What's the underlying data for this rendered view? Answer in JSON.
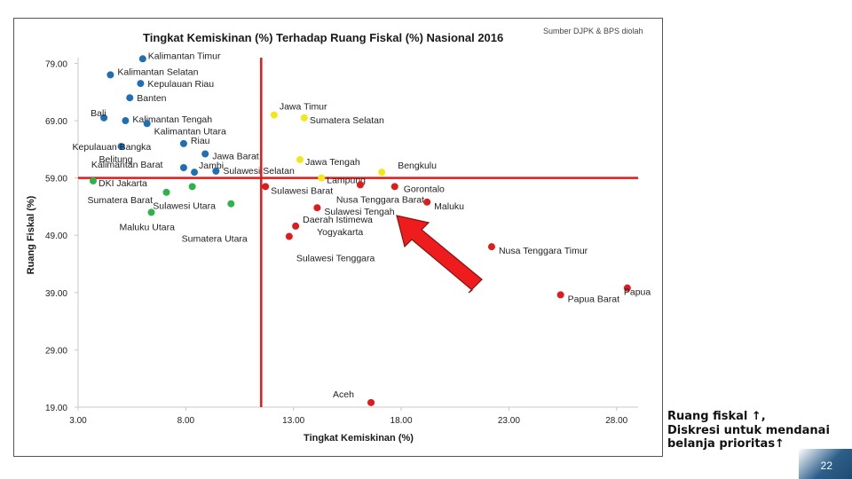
{
  "slide": {
    "source_note": "Sumber DJPK & BPS diolah",
    "side_text_lines": [
      "Ruang fiskal ↑,",
      "Diskresi untuk mendanai",
      "belanja prioritas↑"
    ],
    "page_number": "22"
  },
  "chart_data": {
    "type": "scatter",
    "title": "Tingkat Kemiskinan (%) Terhadap Ruang Fiskal (%) Nasional 2016",
    "xlabel": "Tingkat Kemiskinan (%)",
    "ylabel": "Ruang Fiskal (%)",
    "xlim": [
      3,
      29
    ],
    "ylim": [
      19,
      80
    ],
    "xticks": [
      "3.00",
      "8.00",
      "13.00",
      "18.00",
      "23.00",
      "28.00"
    ],
    "yticks": [
      "19.00",
      "29.00",
      "39.00",
      "49.00",
      "59.00",
      "69.00",
      "79.00"
    ],
    "quadrant_lines": {
      "x": 11.5,
      "y": 59,
      "color": "#e01b1b"
    },
    "colors": {
      "blue": "#1f6fb5",
      "green": "#2db34a",
      "yellow": "#f5e61a",
      "red": "#e01b1b"
    },
    "points": [
      {
        "label": "Kalimantan Timur",
        "x": 6.0,
        "y": 79.8,
        "color": "blue"
      },
      {
        "label": "Kalimantan Selatan",
        "x": 4.5,
        "y": 77.0,
        "color": "blue"
      },
      {
        "label": "Kepulauan Riau",
        "x": 5.9,
        "y": 75.5,
        "color": "blue"
      },
      {
        "label": "Banten",
        "x": 5.4,
        "y": 73.0,
        "color": "blue"
      },
      {
        "label": "Bali",
        "x": 4.2,
        "y": 69.5,
        "color": "blue"
      },
      {
        "label": "Kalimantan Tengah",
        "x": 5.2,
        "y": 69.0,
        "color": "blue"
      },
      {
        "label": "Kalimantan Utara",
        "x": 6.2,
        "y": 68.5,
        "color": "blue"
      },
      {
        "label": "Kepulauan Bangka Belitung",
        "x": 5.0,
        "y": 64.5,
        "color": "blue"
      },
      {
        "label": "Riau",
        "x": 7.9,
        "y": 65.0,
        "color": "blue"
      },
      {
        "label": "Jawa Barat",
        "x": 8.9,
        "y": 63.2,
        "color": "blue"
      },
      {
        "label": "Kalimantan Barat",
        "x": 7.9,
        "y": 60.8,
        "color": "blue"
      },
      {
        "label": "Jambi",
        "x": 8.4,
        "y": 60.0,
        "color": "blue"
      },
      {
        "label": "Sulawesi Selatan",
        "x": 9.4,
        "y": 60.2,
        "color": "blue"
      },
      {
        "label": "DKI Jakarta",
        "x": 3.7,
        "y": 58.5,
        "color": "green"
      },
      {
        "label": "Sumatera Barat",
        "x": 7.1,
        "y": 56.5,
        "color": "green"
      },
      {
        "label": "Sulawesi Utara",
        "x": 10.1,
        "y": 54.5,
        "color": "green"
      },
      {
        "label": "Maluku Utara",
        "x": 6.4,
        "y": 53.0,
        "color": "green"
      },
      {
        "label": "Sumatera Utara",
        "x": 8.3,
        "y": 57.5,
        "color": "green"
      },
      {
        "label": "Jawa Timur",
        "x": 12.1,
        "y": 70.0,
        "color": "yellow"
      },
      {
        "label": "Sumatera Selatan",
        "x": 13.5,
        "y": 69.5,
        "color": "yellow"
      },
      {
        "label": "Jawa Tengah",
        "x": 13.3,
        "y": 62.2,
        "color": "yellow"
      },
      {
        "label": "Lampung",
        "x": 14.3,
        "y": 59.0,
        "color": "yellow"
      },
      {
        "label": "Bengkulu",
        "x": 17.1,
        "y": 60.0,
        "color": "yellow"
      },
      {
        "label": "Sulawesi Barat",
        "x": 11.7,
        "y": 57.5,
        "color": "red"
      },
      {
        "label": "Nusa Tenggara Barat",
        "x": 16.1,
        "y": 57.8,
        "color": "red"
      },
      {
        "label": "Gorontalo",
        "x": 17.7,
        "y": 57.5,
        "color": "red"
      },
      {
        "label": "Maluku",
        "x": 19.2,
        "y": 54.8,
        "color": "red"
      },
      {
        "label": "Sulawesi Tengah",
        "x": 14.1,
        "y": 53.8,
        "color": "red"
      },
      {
        "label": "Daerah Istimewa Yogyakarta",
        "x": 13.1,
        "y": 50.6,
        "color": "red"
      },
      {
        "label": "Sulawesi Tenggara",
        "x": 12.8,
        "y": 48.8,
        "color": "red"
      },
      {
        "label": "Nusa Tenggara Timur",
        "x": 22.2,
        "y": 47.0,
        "color": "red"
      },
      {
        "label": "Papua",
        "x": 28.5,
        "y": 39.8,
        "color": "red"
      },
      {
        "label": "Papua Barat",
        "x": 25.4,
        "y": 38.6,
        "color": "red"
      },
      {
        "label": "Aceh",
        "x": 16.6,
        "y": 19.8,
        "color": "red"
      }
    ]
  }
}
